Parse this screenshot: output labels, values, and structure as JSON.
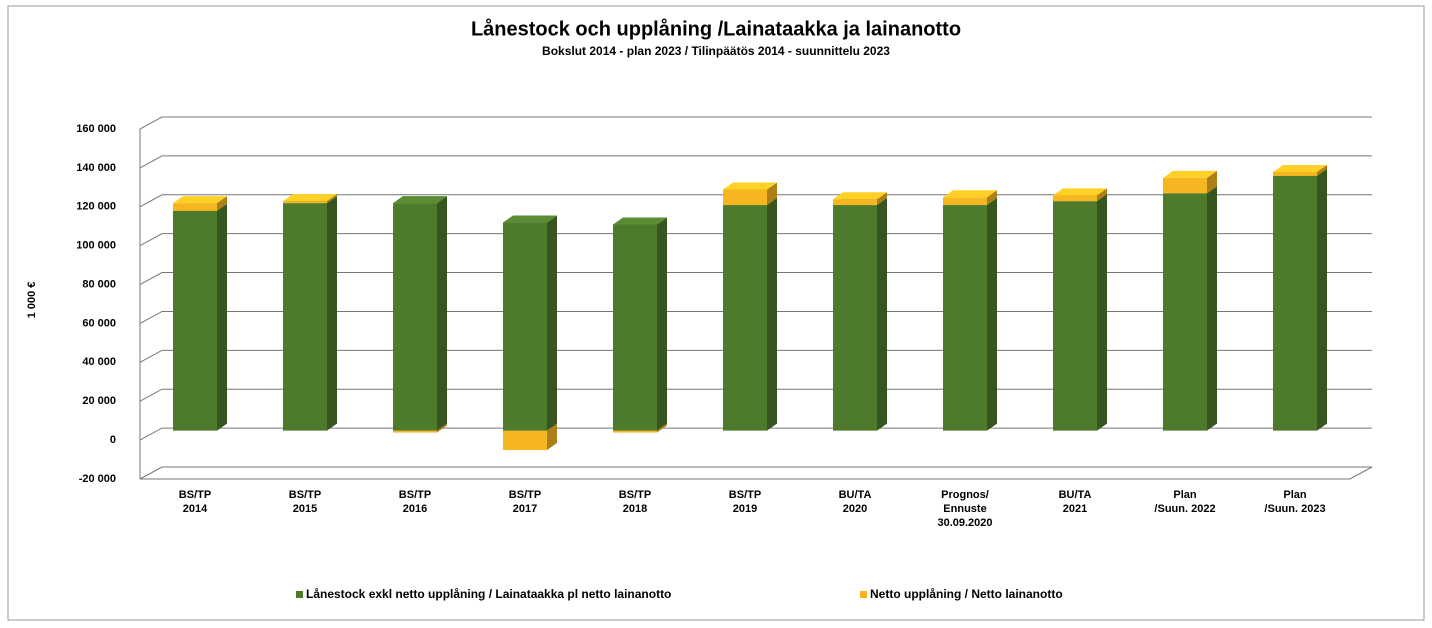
{
  "chart_data": {
    "type": "bar3d_stacked",
    "title": "Lånestock och upplåning /Lainataakka ja lainanotto",
    "subtitle": "Bokslut 2014 - plan 2023 / Tilinpäätös 2014 -  suunnittelu 2023",
    "y_label": "1 000 €",
    "categories": [
      [
        "BS/TP",
        "2014"
      ],
      [
        "BS/TP",
        "2015"
      ],
      [
        "BS/TP",
        "2016"
      ],
      [
        "BS/TP",
        "2017"
      ],
      [
        "BS/TP",
        "2018"
      ],
      [
        "BS/TP",
        "2019"
      ],
      [
        "BU/TA",
        "2020"
      ],
      [
        "Prognos/",
        "Ennuste",
        "30.09.2020"
      ],
      [
        "BU/TA",
        "2021"
      ],
      [
        "Plan",
        "/Suun. 2022"
      ],
      [
        "Plan",
        "/Suun. 2023"
      ]
    ],
    "series": [
      {
        "name": "Lånestock exkl netto upplåning / Lainataakka pl netto lainanotto",
        "color": "#4e7a2c",
        "values": [
          113000,
          117000,
          117000,
          107000,
          106000,
          116000,
          116000,
          116000,
          118000,
          122000,
          131000
        ]
      },
      {
        "name": "Netto upplåning / Netto lainanotto",
        "color": "#f5b622",
        "values": [
          4000,
          1000,
          -1000,
          -10000,
          -1000,
          8000,
          3000,
          4000,
          3000,
          8000,
          2000
        ]
      }
    ],
    "ylim": [
      -20000,
      160000
    ],
    "yticks": [
      {
        "value": -20000,
        "label": "-20 000"
      },
      0,
      {
        "value": 20000,
        "label": "20 000"
      },
      {
        "value": 40000,
        "label": "40 000"
      },
      {
        "value": 60000,
        "label": "60 000"
      },
      {
        "value": 80000,
        "label": "80 000"
      },
      {
        "value": 100000,
        "label": "100 000"
      },
      {
        "value": 120000,
        "label": "120 000"
      },
      {
        "value": 140000,
        "label": "140 000"
      },
      {
        "value": 160000,
        "label": "160 000"
      }
    ],
    "grid": true
  }
}
